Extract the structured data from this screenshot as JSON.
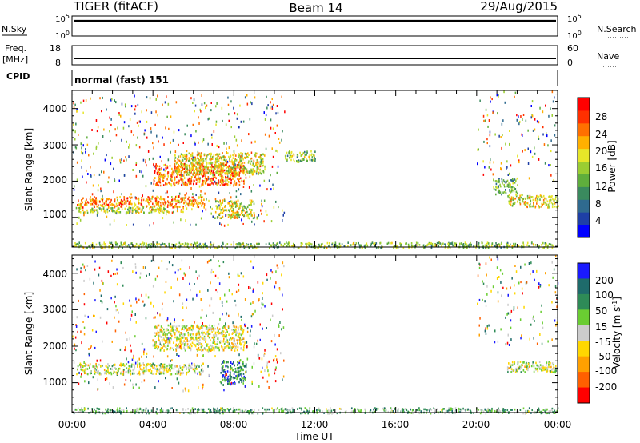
{
  "header": {
    "title": "TIGER (fitACF)",
    "beam": "Beam 14",
    "date": "29/Aug/2015"
  },
  "status_panels": {
    "nsky": {
      "label": "N.Sky",
      "ticks": [
        "10^5",
        "10^0"
      ]
    },
    "nsearch": {
      "label": "N.Search",
      "ticks": [
        "10^5",
        "10^0"
      ]
    },
    "freq": {
      "label_1": "Freq.",
      "label_2": "[MHz]",
      "ticks": [
        "18",
        "8"
      ]
    },
    "nave": {
      "label": "Nave",
      "ticks": [
        "60",
        "0"
      ]
    },
    "cpid": {
      "label": "CPID",
      "mode": "normal (fast) 151"
    }
  },
  "chart_data": [
    {
      "type": "heatmap",
      "name": "power",
      "ylabel": "Slant Range [km]",
      "yticks": [
        "1000",
        "2000",
        "3000",
        "4000"
      ],
      "ylim": [
        180,
        4500
      ],
      "xlim": [
        0,
        24
      ],
      "colorbar": {
        "label": "Power [dB]",
        "ticks": [
          "4",
          "8",
          "12",
          "16",
          "20",
          "24",
          "28"
        ],
        "colors": [
          "#0000ff",
          "#1e3fa6",
          "#2f6a8f",
          "#3a8a5e",
          "#5fae3c",
          "#9acd32",
          "#e6e629",
          "#ffb000",
          "#ff7000",
          "#ff3000",
          "#ff0000"
        ]
      },
      "regions": [
        {
          "t0": 0.2,
          "t1": 6.5,
          "r0": 1300,
          "r1": 1600,
          "level": 0.75
        },
        {
          "t0": 0.1,
          "t1": 5.5,
          "r0": 1150,
          "r1": 1300,
          "level": 0.5
        },
        {
          "t0": 4.0,
          "t1": 8.5,
          "r0": 1900,
          "r1": 2500,
          "level": 0.8
        },
        {
          "t0": 5.0,
          "t1": 9.5,
          "r0": 2200,
          "r1": 2800,
          "level": 0.6
        },
        {
          "t0": 7.0,
          "t1": 9.0,
          "r0": 1000,
          "r1": 1500,
          "level": 0.55
        },
        {
          "t0": 10.5,
          "t1": 12.0,
          "r0": 2550,
          "r1": 2850,
          "level": 0.45
        },
        {
          "t0": 21.5,
          "t1": 24.0,
          "r0": 1300,
          "r1": 1650,
          "level": 0.6
        },
        {
          "t0": 20.8,
          "t1": 22.0,
          "r0": 1650,
          "r1": 2100,
          "level": 0.35
        },
        {
          "t0": 0.0,
          "t1": 24.0,
          "r0": 180,
          "r1": 330,
          "level": 0.45
        }
      ]
    },
    {
      "type": "heatmap",
      "name": "velocity",
      "ylabel": "Slant Range [km]",
      "yticks": [
        "1000",
        "2000",
        "3000",
        "4000"
      ],
      "ylim": [
        180,
        4500
      ],
      "xlim": [
        0,
        24
      ],
      "xticks": [
        "00:00",
        "04:00",
        "08:00",
        "12:00",
        "16:00",
        "20:00",
        "00:00"
      ],
      "xlabel": "Time UT",
      "colorbar": {
        "label": "Velocity [m s^-1]",
        "ticks": [
          "200",
          "100",
          "50",
          "15",
          "-15",
          "-50",
          "-100",
          "-200"
        ],
        "colors": [
          "#1a1aff",
          "#1e6b6b",
          "#2e8b57",
          "#6acd32",
          "#cccccc",
          "#ffd700",
          "#ffa000",
          "#ff6000",
          "#ff0000"
        ]
      },
      "regions": [
        {
          "t0": 0.2,
          "t1": 6.5,
          "r0": 1250,
          "r1": 1550,
          "level": 0.5
        },
        {
          "t0": 4.0,
          "t1": 8.5,
          "r0": 1900,
          "r1": 2600,
          "level": 0.55
        },
        {
          "t0": 7.3,
          "t1": 8.6,
          "r0": 1000,
          "r1": 1600,
          "level": 0.2
        },
        {
          "t0": 21.5,
          "t1": 24.0,
          "r0": 1300,
          "r1": 1600,
          "level": 0.5
        },
        {
          "t0": 0.0,
          "t1": 24.0,
          "r0": 180,
          "r1": 330,
          "level": 0.35
        }
      ]
    }
  ]
}
